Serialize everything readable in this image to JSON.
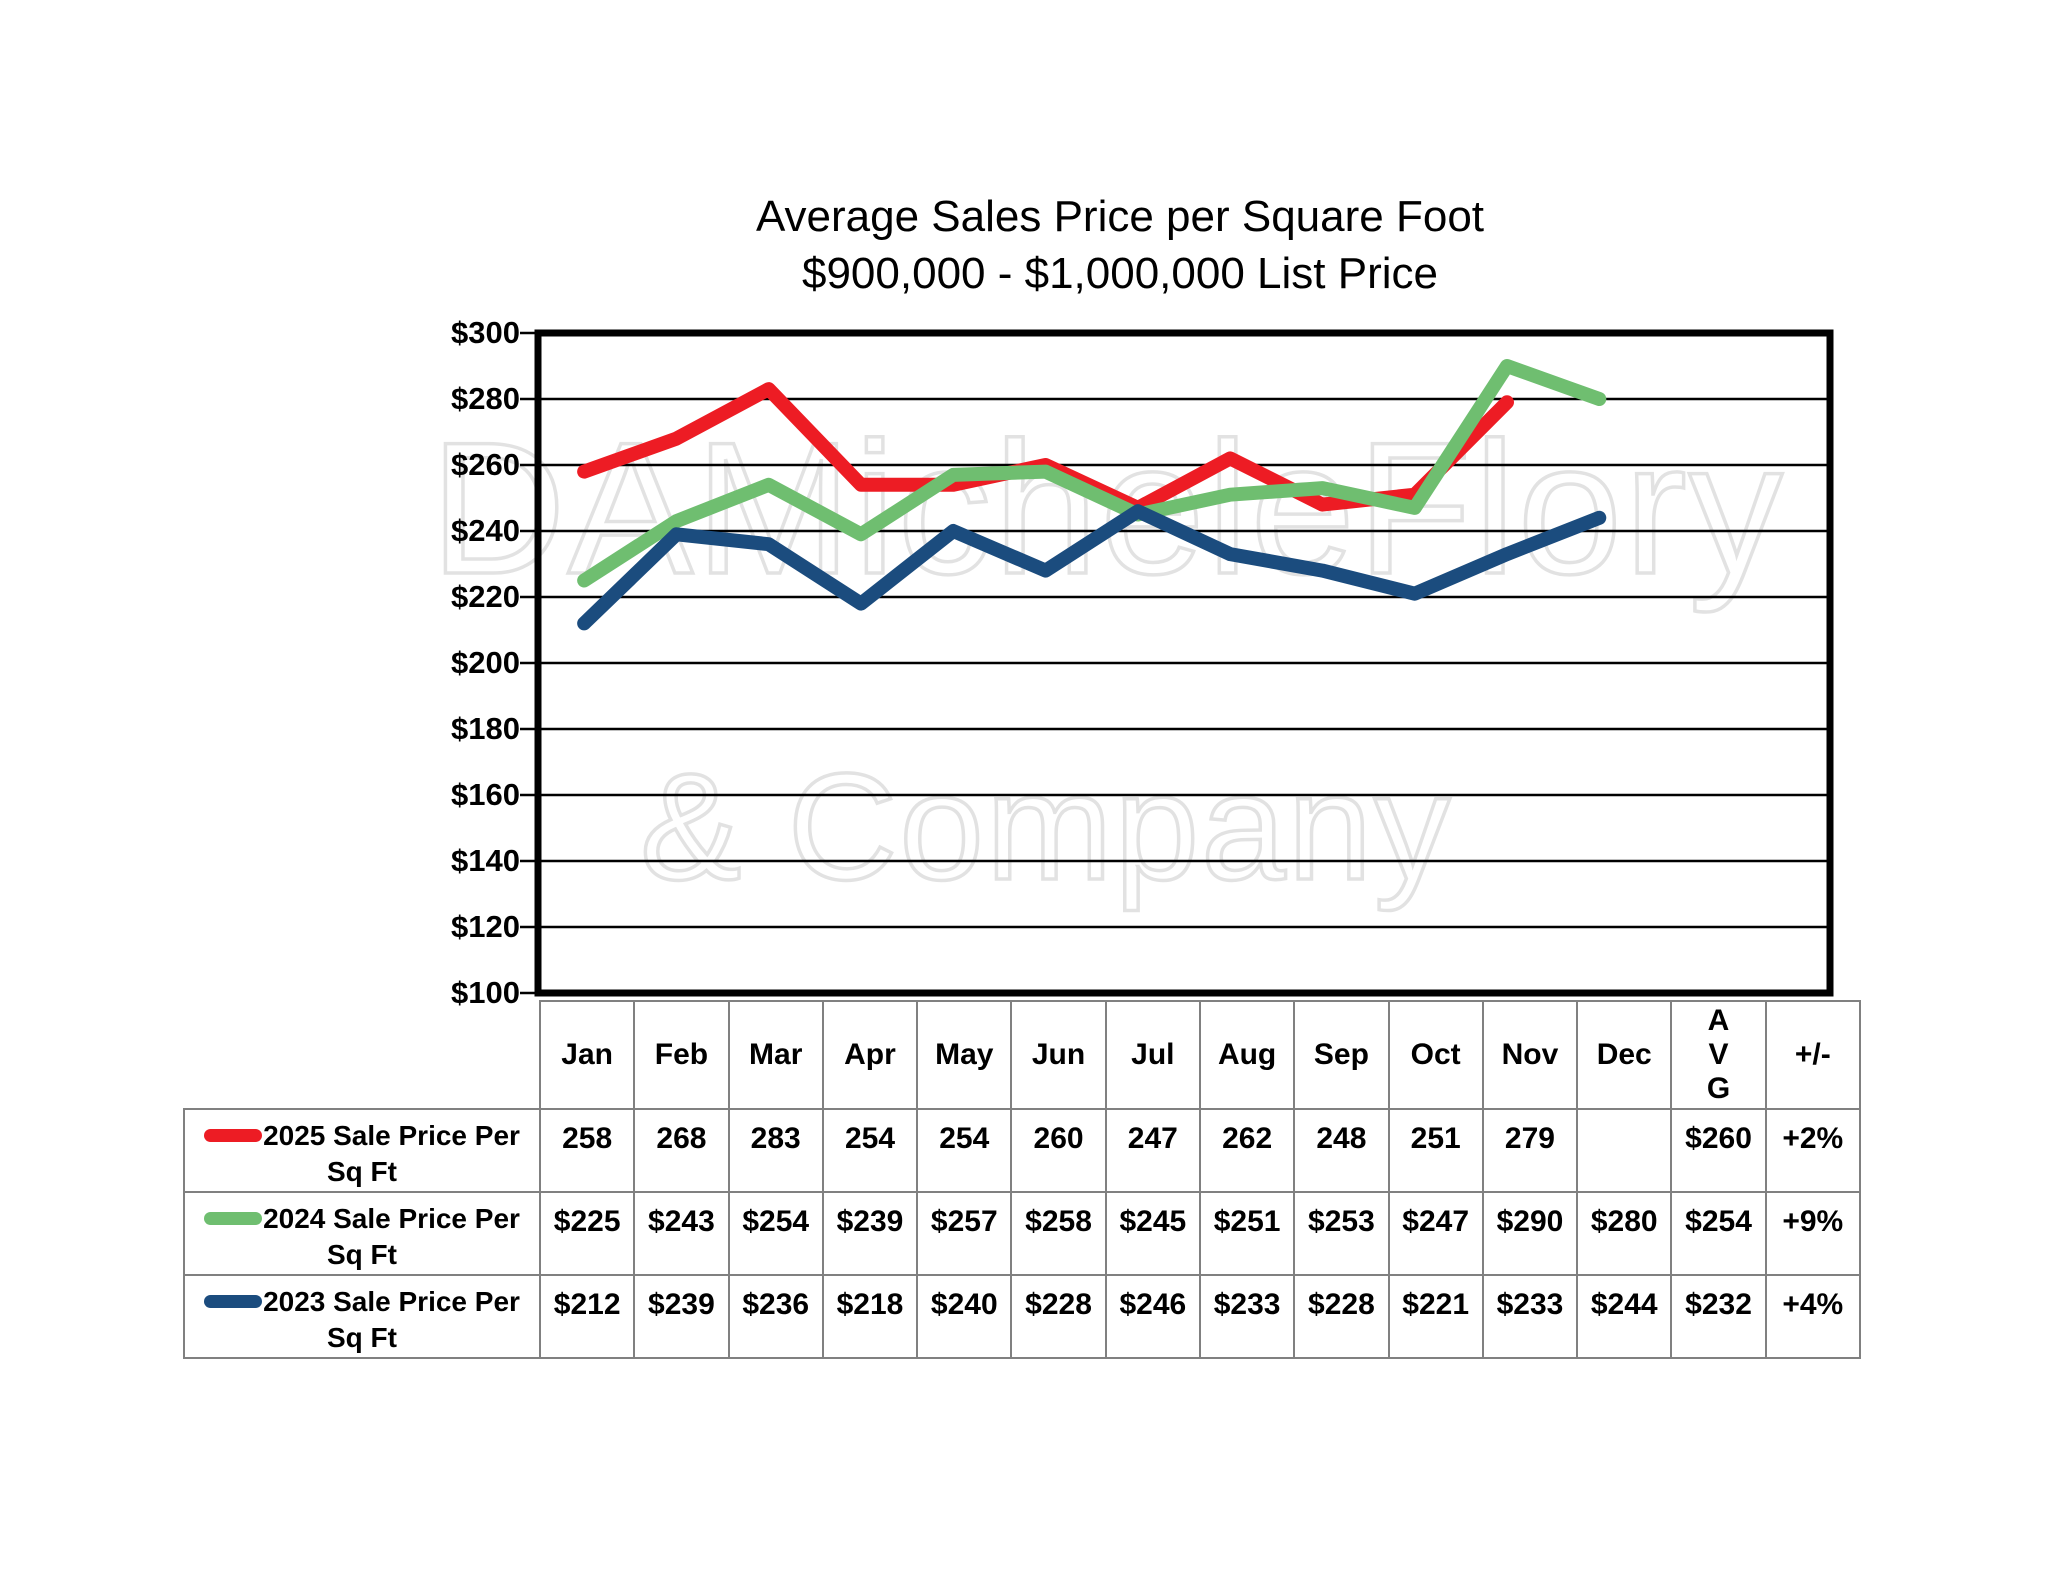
{
  "title": {
    "line1": "Average Sales Price per Square Foot",
    "line2": "$900,000 - $1,000,000 List Price"
  },
  "watermark": {
    "monogram": "DA",
    "line1": "MicheleFlory",
    "line2": "& Company"
  },
  "chart_data": {
    "type": "line",
    "title": "Average Sales Price per Square Foot $900,000 - $1,000,000 List Price",
    "categories": [
      "Jan",
      "Feb",
      "Mar",
      "Apr",
      "May",
      "Jun",
      "Jul",
      "Aug",
      "Sep",
      "Oct",
      "Nov",
      "Dec"
    ],
    "series": [
      {
        "name": "2025 Sale Price Per Sq Ft",
        "color": "#ed1c24",
        "values": [
          258,
          268,
          283,
          254,
          254,
          260,
          247,
          262,
          248,
          251,
          279,
          null
        ]
      },
      {
        "name": "2024 Sale Price Per Sq Ft",
        "color": "#6fbe70",
        "values": [
          225,
          243,
          254,
          239,
          257,
          258,
          245,
          251,
          253,
          247,
          290,
          280
        ]
      },
      {
        "name": "2023 Sale Price Per Sq Ft",
        "color": "#1b4c7e",
        "values": [
          212,
          239,
          236,
          218,
          240,
          228,
          246,
          233,
          228,
          221,
          233,
          244
        ]
      }
    ],
    "ylim": [
      100,
      300
    ],
    "ytick_step": 20,
    "ytick_labels": [
      "$300",
      "$280",
      "$260",
      "$240",
      "$220",
      "$200",
      "$180",
      "$160",
      "$140",
      "$120",
      "$100"
    ],
    "grid": "horizontal-major",
    "legend_position": "table-rows-left",
    "xlabel": "",
    "ylabel": ""
  },
  "table": {
    "column_headers": [
      "Jan",
      "Feb",
      "Mar",
      "Apr",
      "May",
      "Jun",
      "Jul",
      "Aug",
      "Sep",
      "Oct",
      "Nov",
      "Dec",
      "AVG",
      "+/-"
    ],
    "rows": [
      {
        "label": "2025 Sale Price Per Sq Ft",
        "color": "#ed1c24",
        "cells": [
          "258",
          "268",
          "283",
          "254",
          "254",
          "260",
          "247",
          "262",
          "248",
          "251",
          "279",
          "",
          "$260",
          "+2%"
        ]
      },
      {
        "label": "2024 Sale Price Per Sq Ft",
        "color": "#6fbe70",
        "cells": [
          "$225",
          "$243",
          "$254",
          "$239",
          "$257",
          "$258",
          "$245",
          "$251",
          "$253",
          "$247",
          "$290",
          "$280",
          "$254",
          "+9%"
        ]
      },
      {
        "label": "2023 Sale Price Per Sq Ft",
        "color": "#1b4c7e",
        "cells": [
          "$212",
          "$239",
          "$236",
          "$218",
          "$240",
          "$228",
          "$246",
          "$233",
          "$228",
          "$221",
          "$233",
          "$244",
          "$232",
          "+4%"
        ]
      }
    ]
  }
}
